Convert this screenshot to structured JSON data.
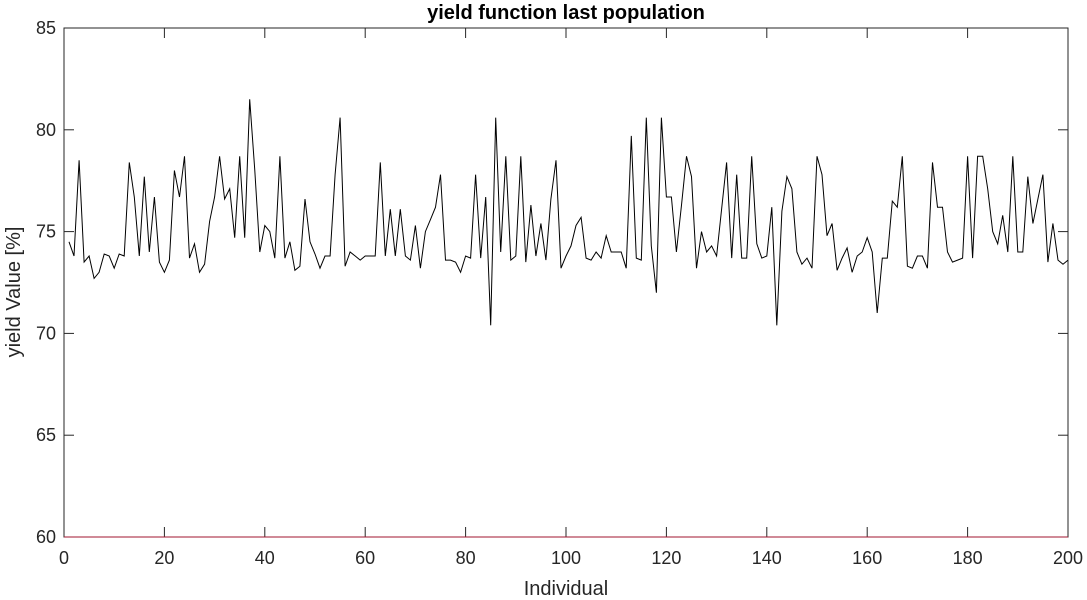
{
  "chart_data": {
    "type": "line",
    "title": "yield function last population",
    "xlabel": "Individual",
    "ylabel": "yield Value [%]",
    "xlim": [
      0,
      200
    ],
    "ylim": [
      60,
      85
    ],
    "xticks": [
      0,
      20,
      40,
      60,
      80,
      100,
      120,
      140,
      160,
      180,
      200
    ],
    "yticks": [
      60,
      65,
      70,
      75,
      80,
      85
    ],
    "grid": false,
    "box": true,
    "series": [
      {
        "color": "#000000",
        "x_start": 1,
        "x_step": 1,
        "values": [
          74.5,
          73.8,
          78.5,
          73.5,
          73.8,
          72.7,
          73.0,
          73.9,
          73.8,
          73.2,
          73.9,
          73.8,
          78.4,
          76.7,
          73.8,
          77.7,
          74.0,
          76.7,
          73.5,
          73.0,
          73.6,
          78.0,
          76.7,
          78.7,
          73.7,
          74.4,
          73.0,
          73.4,
          75.5,
          76.7,
          78.7,
          76.6,
          77.1,
          74.7,
          78.7,
          74.7,
          81.5,
          78.0,
          74.0,
          75.3,
          75.0,
          73.7,
          78.7,
          73.7,
          74.5,
          73.1,
          73.3,
          76.6,
          74.5,
          73.9,
          73.2,
          73.8,
          73.8,
          77.8,
          80.6,
          73.3,
          74.0,
          73.8,
          73.6,
          73.8,
          73.8,
          73.8,
          78.4,
          73.8,
          76.1,
          73.8,
          76.1,
          73.8,
          73.6,
          75.3,
          73.2,
          75.0,
          75.6,
          76.2,
          77.8,
          73.6,
          73.6,
          73.5,
          73.0,
          73.8,
          73.7,
          77.8,
          73.7,
          76.7,
          70.4,
          80.6,
          74.0,
          78.7,
          73.6,
          73.8,
          78.7,
          73.5,
          76.3,
          73.8,
          75.4,
          73.6,
          76.6,
          78.5,
          73.2,
          73.8,
          74.3,
          75.3,
          75.7,
          73.7,
          73.6,
          74.0,
          73.7,
          74.8,
          74.0,
          74.0,
          74.0,
          73.2,
          79.7,
          73.7,
          73.6,
          80.6,
          74.3,
          72.0,
          80.6,
          76.7,
          76.7,
          74.0,
          76.3,
          78.7,
          77.7,
          73.2,
          75.0,
          74.0,
          74.3,
          73.8,
          76.1,
          78.4,
          73.7,
          77.8,
          73.7,
          73.7,
          78.7,
          74.4,
          73.7,
          73.8,
          76.2,
          70.4,
          76.0,
          77.7,
          77.1,
          74.0,
          73.4,
          73.7,
          73.2,
          78.7,
          77.8,
          74.8,
          75.4,
          73.1,
          73.7,
          74.2,
          73.0,
          73.8,
          74.0,
          74.7,
          74.0,
          71.0,
          73.7,
          73.7,
          76.5,
          76.2,
          78.7,
          73.3,
          73.2,
          73.8,
          73.8,
          73.2,
          78.4,
          76.2,
          76.2,
          74.0,
          73.5,
          73.6,
          73.7,
          78.7,
          73.7,
          78.7,
          78.7,
          77.1,
          75.0,
          74.4,
          75.8,
          74.0,
          78.7,
          74.0,
          74.0,
          77.7,
          75.4,
          76.6,
          77.8,
          73.5,
          75.4,
          73.6,
          73.4,
          73.6
        ]
      },
      {
        "color": "#a2142f",
        "x": [
          0,
          200
        ],
        "values": [
          60,
          60
        ]
      }
    ]
  }
}
